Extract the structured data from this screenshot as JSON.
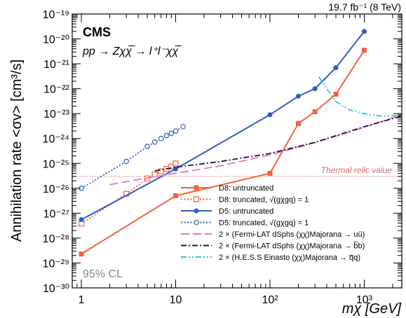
{
  "chart_data": {
    "type": "line",
    "lumi_label": "19.7 fb⁻¹ (8 TeV)",
    "experiment_label": "CMS",
    "process_label": "pp → Zχχ̅ → l⁺l⁻χχ̅",
    "cl_label": "95% CL",
    "xlabel": "mχ [GeV]",
    "ylabel": "Annihilation rate <σv> [cm³/s]",
    "xscale": "log",
    "yscale": "log",
    "xlim": [
      0.8,
      2500
    ],
    "ylim": [
      1e-30,
      1e-19
    ],
    "x_ticks": [
      1,
      10,
      100,
      1000
    ],
    "x_tick_labels": [
      "1",
      "10",
      "10²",
      "10³"
    ],
    "y_ticks": [
      1e-30,
      1e-29,
      1e-28,
      1e-27,
      1e-26,
      1e-25,
      1e-24,
      1e-23,
      1e-22,
      1e-21,
      1e-20,
      1e-19
    ],
    "y_tick_labels": [
      "10⁻³⁰",
      "10⁻²⁹",
      "10⁻²⁸",
      "10⁻²⁷",
      "10⁻²⁶",
      "10⁻²⁵",
      "10⁻²⁴",
      "10⁻²³",
      "10⁻²²",
      "10⁻²¹",
      "10⁻²⁰",
      "10⁻¹⁹"
    ],
    "thermal_relic": {
      "label": "Thermal relic value",
      "value": 3e-26,
      "color": "#d06a6a"
    },
    "legend_position": "bottom-right",
    "series": [
      {
        "name": "D8: untruncated",
        "color": "#f4623a",
        "style": "solid",
        "marker": "filled-square",
        "x": [
          1,
          10,
          100,
          200,
          300,
          500,
          1000
        ],
        "y": [
          2.3e-29,
          5e-27,
          4e-26,
          4e-24,
          1.2e-23,
          6e-23,
          3.5e-21
        ]
      },
      {
        "name": "D8: truncated, √(gχgq) = 1",
        "color": "#f4623a",
        "style": "dotted",
        "marker": "open-square",
        "x": [
          1,
          3,
          5,
          6,
          7,
          8,
          9,
          10
        ],
        "y": [
          3.8e-28,
          6e-27,
          2.5e-26,
          3.6e-26,
          4.8e-26,
          6e-26,
          7.5e-26,
          1e-25
        ]
      },
      {
        "name": "D5: untruncated",
        "color": "#2f5ec0",
        "style": "solid",
        "marker": "filled-circle",
        "x": [
          1,
          10,
          100,
          200,
          300,
          500,
          1000
        ],
        "y": [
          5.5e-28,
          6e-26,
          9e-24,
          5e-23,
          1e-22,
          7e-22,
          2e-20
        ]
      },
      {
        "name": "D5: truncated, √(gχgq) = 1",
        "color": "#2f5ec0",
        "style": "dotted",
        "marker": "open-circle",
        "x": [
          1,
          3,
          5,
          6,
          7,
          8,
          9,
          10,
          12
        ],
        "y": [
          1e-26,
          1.2e-25,
          4.8e-25,
          7.2e-25,
          1e-24,
          1.3e-24,
          1.6e-24,
          2e-24,
          3e-24
        ]
      },
      {
        "name": "2 × (Fermi-LAT dSphs (χχ)Majorana → uū)",
        "color": "#ea74c2",
        "style": "dashed",
        "marker": "none",
        "x": [
          2,
          5,
          10,
          30,
          100,
          300,
          1000,
          2500
        ],
        "y": [
          1.4e-26,
          2.6e-26,
          4e-26,
          8e-26,
          2.2e-25,
          6.8e-25,
          2.8e-24,
          9e-24
        ]
      },
      {
        "name": "2 × (Fermi-LAT dSphs (χχ)Majorana → b̅b)",
        "color": "#2b0f47",
        "style": "dash-dot",
        "marker": "none",
        "x": [
          6,
          10,
          30,
          100,
          300,
          1000,
          2500
        ],
        "y": [
          5e-26,
          7e-26,
          1.2e-25,
          2.5e-25,
          7e-25,
          3e-24,
          8e-24
        ]
      },
      {
        "name": "2 × (H.E.S.S Einasto (χχ)Majorana → q̅q)",
        "color": "#25c7cf",
        "style": "dash-dot-dot",
        "marker": "none",
        "x": [
          330,
          400,
          500,
          700,
          1000,
          1500,
          2500
        ],
        "y": [
          3e-22,
          1e-22,
          3e-23,
          1.4e-23,
          1e-23,
          8e-24,
          8.5e-24
        ]
      }
    ]
  }
}
